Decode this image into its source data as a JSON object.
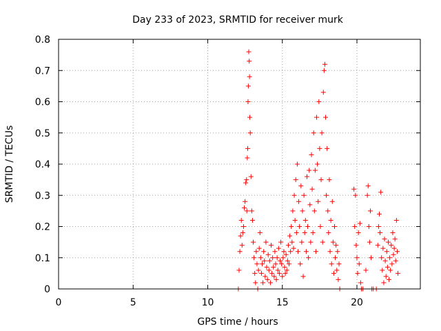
{
  "chart_data": {
    "type": "scatter",
    "title": "Day 233 of 2023, SRMTID for receiver murk",
    "xlabel": "GPS time / hours",
    "ylabel": "SRMTID / TECUs",
    "xlim": [
      0,
      24.25
    ],
    "ylim": [
      0,
      0.8
    ],
    "xticks": [
      0,
      5,
      10,
      15,
      20
    ],
    "xtick_labels": [
      "0",
      "5",
      "10",
      "15",
      "20"
    ],
    "yticks": [
      0,
      0.1,
      0.2,
      0.3,
      0.4,
      0.5,
      0.6,
      0.7,
      0.8
    ],
    "ytick_labels": [
      "0",
      "0.1",
      "0.2",
      "0.3",
      "0.4",
      "0.5",
      "0.6",
      "0.7",
      "0.8"
    ],
    "grid": true,
    "legend": "none",
    "marker": "plus",
    "series_color": "#ff0000",
    "series": [
      {
        "points": [
          [
            12.05,
            0.0
          ],
          [
            12.1,
            0.06
          ],
          [
            12.15,
            0.12
          ],
          [
            12.2,
            0.17
          ],
          [
            12.25,
            0.22
          ],
          [
            12.3,
            0.14
          ],
          [
            12.35,
            0.18
          ],
          [
            12.4,
            0.2
          ],
          [
            12.45,
            0.26
          ],
          [
            12.5,
            0.28
          ],
          [
            12.55,
            0.34
          ],
          [
            12.6,
            0.35
          ],
          [
            12.62,
            0.25
          ],
          [
            12.65,
            0.42
          ],
          [
            12.68,
            0.45
          ],
          [
            12.7,
            0.6
          ],
          [
            12.72,
            0.65
          ],
          [
            12.75,
            0.76
          ],
          [
            12.78,
            0.73
          ],
          [
            12.8,
            0.68
          ],
          [
            12.82,
            0.55
          ],
          [
            12.85,
            0.5
          ],
          [
            12.9,
            0.36
          ],
          [
            12.95,
            0.25
          ],
          [
            13.0,
            0.22
          ],
          [
            13.05,
            0.15
          ],
          [
            13.1,
            0.1
          ],
          [
            13.15,
            0.05
          ],
          [
            13.2,
            0.02
          ],
          [
            13.25,
            0.12
          ],
          [
            13.3,
            0.08
          ],
          [
            13.35,
            0.0
          ],
          [
            13.4,
            0.06
          ],
          [
            13.45,
            0.13
          ],
          [
            13.5,
            0.18
          ],
          [
            13.55,
            0.1
          ],
          [
            13.6,
            0.05
          ],
          [
            13.65,
            0.08
          ],
          [
            13.7,
            0.02
          ],
          [
            13.75,
            0.12
          ],
          [
            13.8,
            0.09
          ],
          [
            13.85,
            0.04
          ],
          [
            13.9,
            0.15
          ],
          [
            13.95,
            0.07
          ],
          [
            14.0,
            0.03
          ],
          [
            14.05,
            0.11
          ],
          [
            14.1,
            0.06
          ],
          [
            14.15,
            0.09
          ],
          [
            14.2,
            0.02
          ],
          [
            14.25,
            0.14
          ],
          [
            14.3,
            0.05
          ],
          [
            14.35,
            0.1
          ],
          [
            14.4,
            0.07
          ],
          [
            14.45,
            0.04
          ],
          [
            14.5,
            0.12
          ],
          [
            14.55,
            0.08
          ],
          [
            14.6,
            0.03
          ],
          [
            14.65,
            0.1
          ],
          [
            14.7,
            0.06
          ],
          [
            14.75,
            0.13
          ],
          [
            14.8,
            0.05
          ],
          [
            14.85,
            0.09
          ],
          [
            14.9,
            0.15
          ],
          [
            14.95,
            0.08
          ],
          [
            15.0,
            0.04
          ],
          [
            15.05,
            0.1
          ],
          [
            15.1,
            0.12
          ],
          [
            15.15,
            0.07
          ],
          [
            15.2,
            0.05
          ],
          [
            15.25,
            0.11
          ],
          [
            15.3,
            0.06
          ],
          [
            15.35,
            0.09
          ],
          [
            15.4,
            0.14
          ],
          [
            15.45,
            0.08
          ],
          [
            15.5,
            0.17
          ],
          [
            15.55,
            0.12
          ],
          [
            15.6,
            0.2
          ],
          [
            15.65,
            0.15
          ],
          [
            15.7,
            0.25
          ],
          [
            15.75,
            0.13
          ],
          [
            15.8,
            0.3
          ],
          [
            15.85,
            0.22
          ],
          [
            15.9,
            0.35
          ],
          [
            15.95,
            0.18
          ],
          [
            16.0,
            0.4
          ],
          [
            16.05,
            0.12
          ],
          [
            16.1,
            0.28
          ],
          [
            16.15,
            0.2
          ],
          [
            16.2,
            0.08
          ],
          [
            16.25,
            0.33
          ],
          [
            16.3,
            0.15
          ],
          [
            16.35,
            0.25
          ],
          [
            16.4,
            0.04
          ],
          [
            16.45,
            0.3
          ],
          [
            16.5,
            0.18
          ],
          [
            16.55,
            0.22
          ],
          [
            16.6,
            0.12
          ],
          [
            16.65,
            0.36
          ],
          [
            16.7,
            0.2
          ],
          [
            16.75,
            0.1
          ],
          [
            16.8,
            0.38
          ],
          [
            16.85,
            0.27
          ],
          [
            16.9,
            0.15
          ],
          [
            16.95,
            0.43
          ],
          [
            17.0,
            0.32
          ],
          [
            17.05,
            0.18
          ],
          [
            17.1,
            0.5
          ],
          [
            17.15,
            0.25
          ],
          [
            17.2,
            0.38
          ],
          [
            17.25,
            0.12
          ],
          [
            17.3,
            0.55
          ],
          [
            17.35,
            0.4
          ],
          [
            17.4,
            0.28
          ],
          [
            17.45,
            0.6
          ],
          [
            17.5,
            0.45
          ],
          [
            17.55,
            0.2
          ],
          [
            17.6,
            0.35
          ],
          [
            17.65,
            0.5
          ],
          [
            17.7,
            0.15
          ],
          [
            17.75,
            0.63
          ],
          [
            17.8,
            0.7
          ],
          [
            17.85,
            0.72
          ],
          [
            17.9,
            0.55
          ],
          [
            17.95,
            0.3
          ],
          [
            18.0,
            0.45
          ],
          [
            18.05,
            0.25
          ],
          [
            18.1,
            0.18
          ],
          [
            18.15,
            0.35
          ],
          [
            18.2,
            0.12
          ],
          [
            18.25,
            0.22
          ],
          [
            18.3,
            0.08
          ],
          [
            18.35,
            0.28
          ],
          [
            18.4,
            0.15
          ],
          [
            18.45,
            0.05
          ],
          [
            18.5,
            0.2
          ],
          [
            18.55,
            0.1
          ],
          [
            18.6,
            0.14
          ],
          [
            18.65,
            0.06
          ],
          [
            18.7,
            0.12
          ],
          [
            18.75,
            0.03
          ],
          [
            18.8,
            0.08
          ],
          [
            18.85,
            0.0
          ],
          [
            19.8,
            0.32
          ],
          [
            19.85,
            0.2
          ],
          [
            19.9,
            0.3
          ],
          [
            19.95,
            0.14
          ],
          [
            20.0,
            0.1
          ],
          [
            20.05,
            0.05
          ],
          [
            20.1,
            0.18
          ],
          [
            20.15,
            0.08
          ],
          [
            20.2,
            0.21
          ],
          [
            20.25,
            0.02
          ],
          [
            20.3,
            0.0
          ],
          [
            20.4,
            0.0
          ],
          [
            20.6,
            0.06
          ],
          [
            20.7,
            0.3
          ],
          [
            20.75,
            0.33
          ],
          [
            20.8,
            0.2
          ],
          [
            20.85,
            0.15
          ],
          [
            20.9,
            0.25
          ],
          [
            20.95,
            0.1
          ],
          [
            21.0,
            0.0
          ],
          [
            21.1,
            0.0
          ],
          [
            21.3,
            0.0
          ],
          [
            21.4,
            0.14
          ],
          [
            21.45,
            0.2
          ],
          [
            21.5,
            0.24
          ],
          [
            21.55,
            0.18
          ],
          [
            21.6,
            0.31
          ],
          [
            21.65,
            0.1
          ],
          [
            21.7,
            0.06
          ],
          [
            21.75,
            0.13
          ],
          [
            21.8,
            0.02
          ],
          [
            21.85,
            0.16
          ],
          [
            21.9,
            0.09
          ],
          [
            21.95,
            0.04
          ],
          [
            22.0,
            0.12
          ],
          [
            22.05,
            0.07
          ],
          [
            22.1,
            0.15
          ],
          [
            22.15,
            0.03
          ],
          [
            22.2,
            0.1
          ],
          [
            22.25,
            0.06
          ],
          [
            22.3,
            0.14
          ],
          [
            22.35,
            0.08
          ],
          [
            22.4,
            0.18
          ],
          [
            22.45,
            0.11
          ],
          [
            22.5,
            0.13
          ],
          [
            22.55,
            0.16
          ],
          [
            22.6,
            0.09
          ],
          [
            22.65,
            0.22
          ],
          [
            22.7,
            0.12
          ],
          [
            22.75,
            0.05
          ]
        ]
      }
    ]
  }
}
